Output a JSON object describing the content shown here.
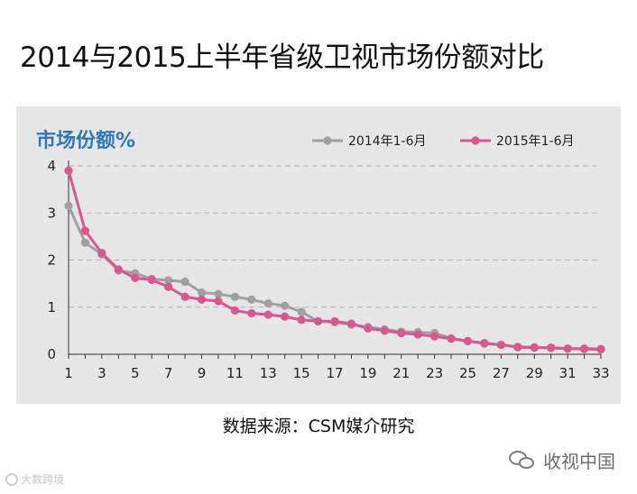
{
  "title": "2014与2015上半年省级卫视市场份额对比",
  "source_note": "数据来源：CSM媒介研究",
  "watermark_left": "大数跨境",
  "watermark_right": "收视中国",
  "icons": {
    "watermark_left": "logo-icon",
    "watermark_right": "wechat-icon"
  },
  "colors": {
    "panel_bg": "#e6e6e6",
    "series_2014": "#a0a0a0",
    "series_2015": "#d9578c",
    "ylabel": "#2f79b8",
    "grid": "#b3b3b3"
  },
  "chart_data": {
    "type": "line",
    "ylabel": "市场份额%",
    "xlabel": "",
    "ylim": [
      0,
      4
    ],
    "yticks": [
      0,
      1,
      2,
      3,
      4
    ],
    "xticks": [
      1,
      3,
      5,
      7,
      9,
      11,
      13,
      15,
      17,
      19,
      21,
      23,
      25,
      27,
      29,
      31,
      33
    ],
    "grid": "horizontal dashed",
    "legend_position": "top-right",
    "x": [
      1,
      2,
      3,
      4,
      5,
      6,
      7,
      8,
      9,
      10,
      11,
      12,
      13,
      14,
      15,
      16,
      17,
      18,
      19,
      20,
      21,
      22,
      23,
      24,
      25,
      26,
      27,
      28,
      29,
      30,
      31,
      32,
      33
    ],
    "series": [
      {
        "name": "2014年1-6月",
        "values": [
          3.15,
          2.37,
          2.12,
          1.78,
          1.72,
          1.6,
          1.57,
          1.54,
          1.31,
          1.28,
          1.22,
          1.16,
          1.08,
          1.03,
          0.9,
          0.7,
          0.68,
          0.63,
          0.58,
          0.53,
          0.48,
          0.47,
          0.45,
          0.34,
          0.28,
          0.24,
          0.2,
          0.16,
          0.15,
          0.13,
          0.12,
          0.11,
          0.1
        ]
      },
      {
        "name": "2015年1-6月",
        "values": [
          3.9,
          2.62,
          2.15,
          1.8,
          1.62,
          1.58,
          1.43,
          1.22,
          1.16,
          1.13,
          0.93,
          0.87,
          0.84,
          0.8,
          0.73,
          0.7,
          0.7,
          0.65,
          0.55,
          0.5,
          0.45,
          0.42,
          0.38,
          0.33,
          0.28,
          0.23,
          0.2,
          0.15,
          0.14,
          0.14,
          0.12,
          0.12,
          0.11
        ]
      }
    ]
  }
}
